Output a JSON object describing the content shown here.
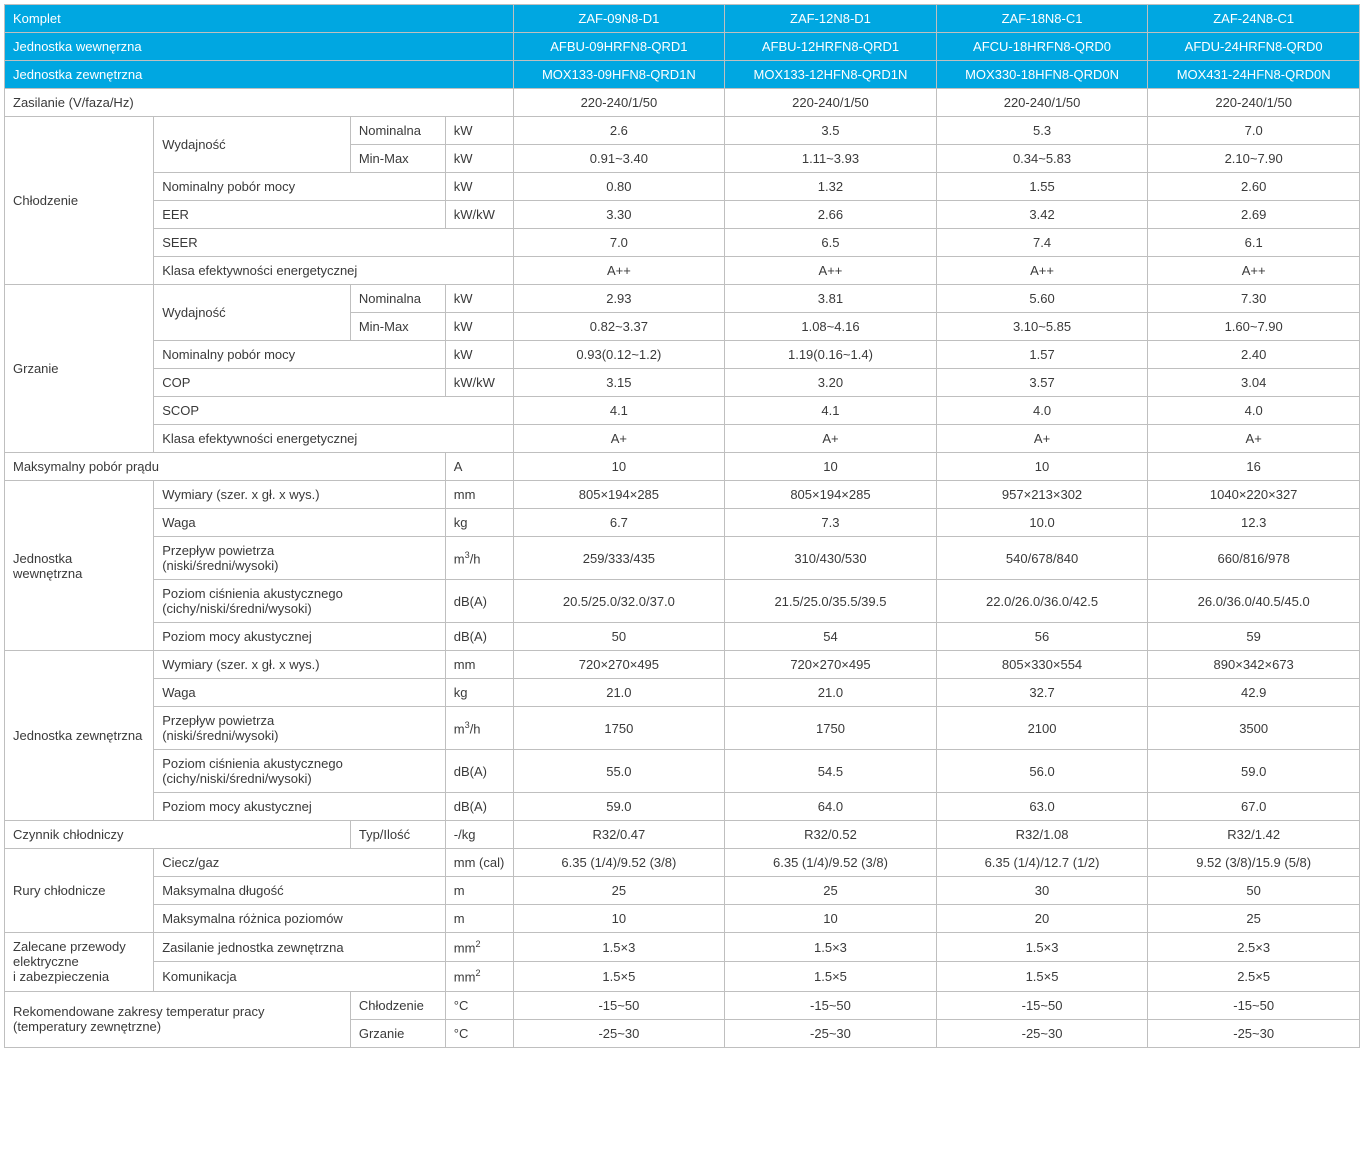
{
  "table": {
    "header_bg": "#00a7e1",
    "border_color": "#bfbfbf",
    "text_color": "#3a3a3a",
    "font_size": 13,
    "header_rows": [
      {
        "label": "Komplet",
        "cells": [
          "ZAF-09N8-D1",
          "ZAF-12N8-D1",
          "ZAF-18N8-C1",
          "ZAF-24N8-C1"
        ]
      },
      {
        "label": "Jednostka wewnęrzna",
        "cells": [
          "AFBU-09HRFN8-QRD1",
          "AFBU-12HRFN8-QRD1",
          "AFCU-18HRFN8-QRD0",
          "AFDU-24HRFN8-QRD0"
        ]
      },
      {
        "label": "Jednostka zewnętrzna",
        "cells": [
          "MOX133-09HFN8-QRD1N",
          "MOX133-12HFN8-QRD1N",
          "MOX330-18HFN8-QRD0N",
          "MOX431-24HFN8-QRD0N"
        ]
      }
    ],
    "rows": [
      {
        "type": "simple",
        "lab": "Zasilanie (V/faza/Hz)",
        "lab_span": 4,
        "unit": "",
        "no_unit": true,
        "v": [
          "220-240/1/50",
          "220-240/1/50",
          "220-240/1/50",
          "220-240/1/50"
        ]
      },
      {
        "type": "group_start",
        "group": "Chłodzenie",
        "group_rows": 6,
        "sub": "Wydajność",
        "sub_rows": 2,
        "sub2": "Nominalna",
        "unit": "kW",
        "v": [
          "2.6",
          "3.5",
          "5.3",
          "7.0"
        ]
      },
      {
        "type": "sub2",
        "sub2": "Min-Max",
        "unit": "kW",
        "v": [
          "0.91~3.40",
          "1.11~3.93",
          "0.34~5.83",
          "2.10~7.90"
        ]
      },
      {
        "type": "sub",
        "sub": "Nominalny pobór mocy",
        "unit": "kW",
        "v": [
          "0.80",
          "1.32",
          "1.55",
          "2.60"
        ]
      },
      {
        "type": "sub",
        "sub": "EER",
        "unit": "kW/kW",
        "v": [
          "3.30",
          "2.66",
          "3.42",
          "2.69"
        ]
      },
      {
        "type": "sub",
        "sub": "SEER",
        "unit": "",
        "no_unit": true,
        "sub_span": 3,
        "v": [
          "7.0",
          "6.5",
          "7.4",
          "6.1"
        ]
      },
      {
        "type": "sub",
        "sub": "Klasa efektywności energetycznej",
        "unit": "",
        "no_unit": true,
        "sub_span": 3,
        "v": [
          "A++",
          "A++",
          "A++",
          "A++"
        ]
      },
      {
        "type": "group_start",
        "group": "Grzanie",
        "group_rows": 6,
        "sub": "Wydajność",
        "sub_rows": 2,
        "sub2": "Nominalna",
        "unit": "kW",
        "v": [
          "2.93",
          "3.81",
          "5.60",
          "7.30"
        ]
      },
      {
        "type": "sub2",
        "sub2": "Min-Max",
        "unit": "kW",
        "v": [
          "0.82~3.37",
          "1.08~4.16",
          "3.10~5.85",
          "1.60~7.90"
        ]
      },
      {
        "type": "sub",
        "sub": "Nominalny pobór mocy",
        "unit": "kW",
        "v": [
          "0.93(0.12~1.2)",
          "1.19(0.16~1.4)",
          "1.57",
          "2.40"
        ]
      },
      {
        "type": "sub",
        "sub": "COP",
        "unit": "kW/kW",
        "v": [
          "3.15",
          "3.20",
          "3.57",
          "3.04"
        ]
      },
      {
        "type": "sub",
        "sub": "SCOP",
        "unit": "",
        "no_unit": true,
        "sub_span": 3,
        "v": [
          "4.1",
          "4.1",
          "4.0",
          "4.0"
        ]
      },
      {
        "type": "sub",
        "sub": "Klasa efektywności energetycznej",
        "unit": "",
        "no_unit": true,
        "sub_span": 3,
        "v": [
          "A+",
          "A+",
          "A+",
          "A+"
        ]
      },
      {
        "type": "simple",
        "lab": "Maksymalny pobór prądu",
        "lab_span": 3,
        "unit": "A",
        "v": [
          "10",
          "10",
          "10",
          "16"
        ]
      },
      {
        "type": "group_start",
        "group": "Jednostka wewnętrzna",
        "group_rows": 5,
        "sub": "Wymiary (szer. x gł. x wys.)",
        "unit": "mm",
        "v": [
          "805×194×285",
          "805×194×285",
          "957×213×302",
          "1040×220×327"
        ]
      },
      {
        "type": "sub",
        "sub": "Waga",
        "unit": "kg",
        "v": [
          "6.7",
          "7.3",
          "10.0",
          "12.3"
        ]
      },
      {
        "type": "sub",
        "sub": "Przepływ powietrza\n(niski/średni/wysoki)",
        "unit": "m³/h",
        "v": [
          "259/333/435",
          "310/430/530",
          "540/678/840",
          "660/816/978"
        ]
      },
      {
        "type": "sub",
        "sub": "Poziom ciśnienia akustycznego\n (cichy/niski/średni/wysoki)",
        "unit": "dB(A)",
        "v": [
          "20.5/25.0/32.0/37.0",
          "21.5/25.0/35.5/39.5",
          "22.0/26.0/36.0/42.5",
          "26.0/36.0/40.5/45.0"
        ]
      },
      {
        "type": "sub",
        "sub": "Poziom mocy akustycznej",
        "unit": "dB(A)",
        "v": [
          "50",
          "54",
          "56",
          "59"
        ]
      },
      {
        "type": "group_start",
        "group": "Jednostka zewnętrzna",
        "group_rows": 5,
        "sub": "Wymiary (szer. x gł. x wys.)",
        "unit": "mm",
        "v": [
          "720×270×495",
          "720×270×495",
          "805×330×554",
          "890×342×673"
        ]
      },
      {
        "type": "sub",
        "sub": "Waga",
        "unit": "kg",
        "v": [
          "21.0",
          "21.0",
          "32.7",
          "42.9"
        ]
      },
      {
        "type": "sub",
        "sub": "Przepływ powietrza\n(niski/średni/wysoki)",
        "unit": "m³/h",
        "v": [
          "1750",
          "1750",
          "2100",
          "3500"
        ]
      },
      {
        "type": "sub",
        "sub": "Poziom ciśnienia akustycznego\n(cichy/niski/średni/wysoki)",
        "unit": "dB(A)",
        "v": [
          "55.0",
          "54.5",
          "56.0",
          "59.0"
        ]
      },
      {
        "type": "sub",
        "sub": "Poziom mocy akustycznej",
        "unit": "dB(A)",
        "v": [
          "59.0",
          "64.0",
          "63.0",
          "67.0"
        ]
      },
      {
        "type": "simple",
        "lab": "Czynnik chłodniczy",
        "lab_span": 2,
        "sub2": "Typ/Ilość",
        "unit": "-/kg",
        "v": [
          "R32/0.47",
          "R32/0.52",
          "R32/1.08",
          "R32/1.42"
        ]
      },
      {
        "type": "group_start",
        "group": "Rury chłodnicze",
        "group_rows": 3,
        "sub": "Ciecz/gaz",
        "unit": "mm (cal)",
        "v": [
          "6.35 (1/4)/9.52 (3/8)",
          "6.35 (1/4)/9.52 (3/8)",
          "6.35 (1/4)/12.7 (1/2)",
          "9.52 (3/8)/15.9 (5/8)"
        ]
      },
      {
        "type": "sub",
        "sub": "Maksymalna długość",
        "unit": "m",
        "v": [
          "25",
          "25",
          "30",
          "50"
        ]
      },
      {
        "type": "sub",
        "sub": "Maksymalna różnica poziomów",
        "unit": "m",
        "v": [
          "10",
          "10",
          "20",
          "25"
        ]
      },
      {
        "type": "group_start",
        "group": "Zalecane przewody elektryczne\ni zabezpieczenia",
        "group_rows": 2,
        "sub": "Zasilanie jednostka zewnętrzna",
        "unit": "mm²",
        "v": [
          "1.5×3",
          "1.5×3",
          "1.5×3",
          "2.5×3"
        ]
      },
      {
        "type": "sub",
        "sub": "Komunikacja",
        "unit": "mm²",
        "v": [
          "1.5×5",
          "1.5×5",
          "1.5×5",
          "2.5×5"
        ]
      },
      {
        "type": "group_start",
        "group": "Rekomendowane zakresy temperatur pracy\n(temperatury zewnętrzne)",
        "group_rows": 2,
        "group_span": 2,
        "sub": "Chłodzenie",
        "sub_is_sub2": true,
        "unit": "°C",
        "v": [
          "-15~50",
          "-15~50",
          "-15~50",
          "-15~50"
        ]
      },
      {
        "type": "sub",
        "sub": "Grzanie",
        "sub_is_sub2": true,
        "unit": "°C",
        "v": [
          "-25~30",
          "-25~30",
          "-25~30",
          "-25~30"
        ]
      }
    ]
  }
}
